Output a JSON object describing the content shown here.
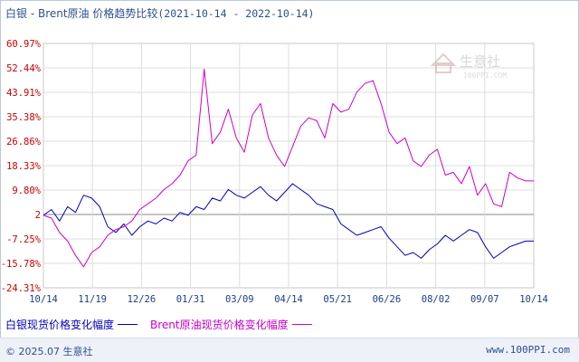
{
  "chart_data": {
    "type": "line",
    "title": "白银 - Brent原油 价格趋势比较",
    "date_range": "(2021-10-14 - 2022-10-14)",
    "xlabel": "",
    "ylabel": "",
    "x_ticks": [
      "10/14",
      "11/19",
      "12/26",
      "01/31",
      "03/09",
      "04/14",
      "05/21",
      "06/26",
      "08/02",
      "09/07",
      "10/14"
    ],
    "y_ticks": [
      "60.97%",
      "52.44%",
      "43.91%",
      "35.38%",
      "26.86%",
      "18.33%",
      "9.80%",
      "2",
      "-7.25%",
      "-15.78%",
      "-24.31%"
    ],
    "ylim": [
      -24.31,
      60.97
    ],
    "grid": true,
    "legend_position": "bottom-left",
    "series": [
      {
        "name": "白银现货价格变化幅度",
        "color": "#0000bb",
        "values": [
          1,
          3,
          -1,
          4,
          2,
          8,
          7,
          4,
          -3,
          -5,
          -2,
          -6,
          -3,
          -1,
          -2,
          0,
          -1,
          2,
          1,
          4,
          3,
          7,
          6,
          10,
          8,
          7,
          9,
          11,
          8,
          6,
          9,
          12,
          10,
          8,
          5,
          4,
          3,
          -2,
          -4,
          -6,
          -5,
          -4,
          -3,
          -7,
          -10,
          -13,
          -12,
          -14,
          -11,
          -9,
          -6,
          -8,
          -6,
          -4,
          -5,
          -10,
          -14,
          -12,
          -10,
          -9,
          -8,
          -8
        ]
      },
      {
        "name": "Brent原油现货价格变化幅度",
        "color": "#cc00cc",
        "values": [
          1,
          0,
          -5,
          -8,
          -13,
          -17,
          -12,
          -10,
          -6,
          -4,
          -3,
          -1,
          3,
          5,
          7,
          10,
          12,
          15,
          20,
          22,
          52,
          26,
          30,
          38,
          28,
          23,
          36,
          40,
          28,
          22,
          18,
          25,
          32,
          35,
          34,
          28,
          40,
          37,
          38,
          44,
          47,
          48,
          40,
          30,
          26,
          28,
          20,
          18,
          22,
          24,
          15,
          16,
          12,
          18,
          8,
          12,
          5,
          4,
          16,
          14,
          13,
          13
        ]
      }
    ]
  },
  "watermark": {
    "name": "生意社",
    "url": "100PPI.COM"
  },
  "footer": {
    "copyright": "© 2025.07 生意社",
    "site": "www.100PPI.com"
  }
}
